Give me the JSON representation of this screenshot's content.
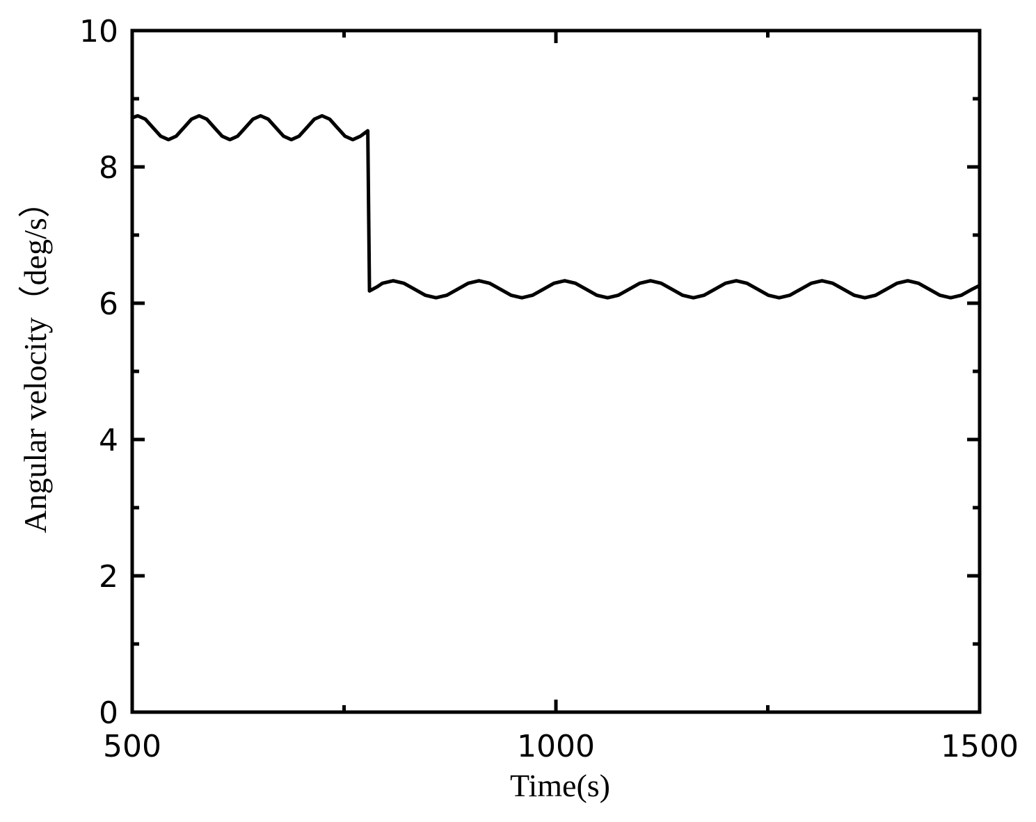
{
  "chart_data": {
    "type": "line",
    "xlabel": "Time(s)",
    "ylabel": "Angular velocity（deg/s）",
    "xlim": [
      500,
      1500
    ],
    "ylim": [
      0,
      10
    ],
    "xticks": [
      500,
      1000,
      1500
    ],
    "yticks": [
      0,
      2,
      4,
      6,
      8,
      10
    ],
    "xminorticks": [
      750,
      1250
    ],
    "yminorticks": [
      1,
      3,
      5,
      7,
      9
    ],
    "grid": false,
    "series": [
      {
        "color": "#000000",
        "x": [
          500,
          506.5,
          515.6,
          524.6,
          533.7,
          542.8,
          551.8,
          560.9,
          569.9,
          579.0,
          588.1,
          597.1,
          606.2,
          615.3,
          624.3,
          633.4,
          642.4,
          651.5,
          660.6,
          669.6,
          678.7,
          687.8,
          696.8,
          705.9,
          714.9,
          724.0,
          733.1,
          742.1,
          751.2,
          760.3,
          769.3,
          778,
          780,
          789,
          795.3,
          808,
          820.6,
          833.3,
          845.9,
          858.6,
          871.2,
          883.9,
          896.5,
          909.2,
          921.8,
          934.5,
          947.1,
          959.8,
          972.4,
          985.1,
          997.7,
          1010.4,
          1023,
          1035.7,
          1048.3,
          1061,
          1073.6,
          1086.3,
          1098.9,
          1111.6,
          1124.2,
          1136.9,
          1149.5,
          1162.2,
          1174.8,
          1187.5,
          1200.1,
          1212.8,
          1225.4,
          1238.1,
          1250.7,
          1263.4,
          1276,
          1288.7,
          1301.3,
          1314,
          1326.6,
          1339.3,
          1351.9,
          1364.6,
          1377.2,
          1389.9,
          1402.5,
          1415.2,
          1427.8,
          1440.5,
          1453.1,
          1465.8,
          1478.4,
          1491.1,
          1500
        ],
        "values": [
          8.72,
          8.75,
          8.7,
          8.575,
          8.45,
          8.4,
          8.45,
          8.575,
          8.7,
          8.75,
          8.7,
          8.575,
          8.45,
          8.4,
          8.45,
          8.575,
          8.7,
          8.75,
          8.7,
          8.575,
          8.45,
          8.4,
          8.45,
          8.575,
          8.7,
          8.75,
          8.7,
          8.575,
          8.45,
          8.4,
          8.45,
          8.53,
          6.18,
          6.24,
          6.293,
          6.33,
          6.293,
          6.205,
          6.117,
          6.08,
          6.117,
          6.205,
          6.293,
          6.33,
          6.293,
          6.205,
          6.117,
          6.08,
          6.117,
          6.205,
          6.293,
          6.33,
          6.293,
          6.205,
          6.117,
          6.08,
          6.117,
          6.205,
          6.293,
          6.33,
          6.293,
          6.205,
          6.117,
          6.08,
          6.117,
          6.205,
          6.293,
          6.33,
          6.293,
          6.205,
          6.117,
          6.08,
          6.117,
          6.205,
          6.293,
          6.33,
          6.293,
          6.205,
          6.117,
          6.08,
          6.117,
          6.205,
          6.293,
          6.33,
          6.293,
          6.205,
          6.117,
          6.08,
          6.117,
          6.205,
          6.26
        ]
      }
    ]
  }
}
